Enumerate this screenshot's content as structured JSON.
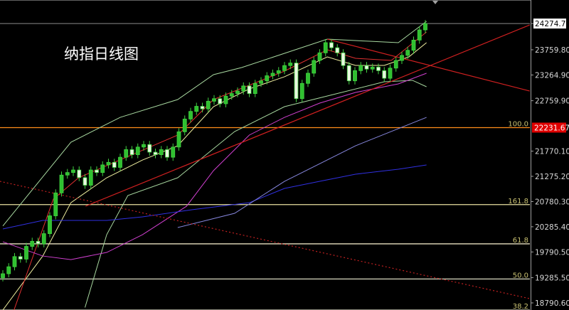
{
  "chart_data": {
    "type": "candlestick",
    "title": "纳指日线图",
    "ylim": [
      18651,
      24737
    ],
    "grid": false,
    "y_ticks": [
      "24274.73",
      "23759.80",
      "23264.90",
      "22759.90",
      "21770.10",
      "21275.20",
      "20780.30",
      "20285.40",
      "19790.50",
      "19285.50",
      "18790.60"
    ],
    "y_tick_values": [
      24274.73,
      23759.8,
      23264.9,
      22759.9,
      21770.1,
      21275.2,
      20780.3,
      20285.4,
      19790.5,
      19285.5,
      18790.6
    ],
    "current_price": {
      "label": "24274.73",
      "value": 24274.73
    },
    "marker_price": {
      "label": "22231.67",
      "value": 22231.67,
      "color": "#e00000"
    },
    "close": [
      19363,
      19500,
      19700,
      19650,
      19900,
      20000,
      19950,
      20150,
      20500,
      20950,
      21300,
      21350,
      21400,
      21250,
      21100,
      21400,
      21350,
      21500,
      21550,
      21450,
      21650,
      21800,
      21700,
      21850,
      21900,
      21750,
      21700,
      21800,
      21650,
      21850,
      22150,
      22400,
      22550,
      22650,
      22600,
      22750,
      22800,
      22700,
      22850,
      22900,
      22950,
      23050,
      22900,
      23100,
      23150,
      23250,
      23300,
      23350,
      23450,
      23500,
      22800,
      23100,
      23300,
      23550,
      23700,
      23900,
      23800,
      23700,
      23450,
      23150,
      23350,
      23450,
      23380,
      23420,
      23350,
      23200,
      23400,
      23550,
      23650,
      23750,
      23950,
      24150,
      24274
    ],
    "fib_levels": [
      {
        "label": "100.0",
        "value": 22231.67,
        "color": "#ff8c1a"
      },
      {
        "label": "161.8",
        "value": 20720,
        "color": "#e8e0a0"
      },
      {
        "label": "61.8",
        "value": 19950,
        "color": "#e8e0c0"
      },
      {
        "label": "50.0",
        "value": 19260,
        "color": "#d8d8c0"
      },
      {
        "label": "38.2",
        "value": 18650,
        "color": "#d8d8c0"
      }
    ],
    "lines": [
      {
        "color": "#a8d8a0",
        "points": [
          [
            0,
            20300
          ],
          [
            11.6,
            21945
          ],
          [
            20,
            22433
          ],
          [
            29.8,
            22783
          ],
          [
            35.9,
            23271
          ],
          [
            40.7,
            23411
          ],
          [
            48,
            23690
          ],
          [
            55.3,
            23969
          ],
          [
            62.5,
            23927
          ],
          [
            67.4,
            23900
          ],
          [
            72.2,
            24318
          ]
        ]
      },
      {
        "color": "#a8d8a0",
        "points": [
          [
            14,
            18700
          ],
          [
            17.7,
            20130
          ],
          [
            21.3,
            20898
          ],
          [
            29.8,
            21247
          ],
          [
            39.5,
            22154
          ],
          [
            48,
            22643
          ],
          [
            55.3,
            22852
          ],
          [
            65,
            23131
          ],
          [
            69.8,
            23160
          ],
          [
            72.2,
            23034
          ]
        ]
      },
      {
        "color": "#f0f0a0",
        "points": [
          [
            0,
            18651
          ],
          [
            6.8,
            19711
          ],
          [
            11.6,
            20758
          ],
          [
            17.7,
            21247
          ],
          [
            23.8,
            21596
          ],
          [
            29.8,
            21875
          ],
          [
            35.9,
            22643
          ],
          [
            42,
            22992
          ],
          [
            48,
            23230
          ],
          [
            55.3,
            23620
          ],
          [
            60.1,
            23453
          ],
          [
            65,
            23453
          ],
          [
            69.2,
            23620
          ],
          [
            72.2,
            23900
          ]
        ]
      },
      {
        "color": "#e03030",
        "points": [
          [
            1.9,
            18651
          ],
          [
            8.6,
            20828
          ],
          [
            12.9,
            21247
          ],
          [
            29.8,
            22085
          ],
          [
            35.9,
            22783
          ],
          [
            48,
            23341
          ],
          [
            55.3,
            23760
          ],
          [
            60.1,
            23592
          ],
          [
            66.2,
            23550
          ],
          [
            72.2,
            24109
          ]
        ]
      },
      {
        "color": "#d040d0",
        "points": [
          [
            0,
            19990
          ],
          [
            6.8,
            19711
          ],
          [
            11.6,
            19641
          ],
          [
            17.7,
            19781
          ],
          [
            23.8,
            20130
          ],
          [
            31.3,
            20688
          ],
          [
            35.9,
            21387
          ],
          [
            42,
            22085
          ],
          [
            48,
            22433
          ],
          [
            54,
            22713
          ],
          [
            60.1,
            22922
          ],
          [
            67.4,
            23090
          ],
          [
            72.2,
            23299
          ]
        ]
      },
      {
        "color": "#3030e0",
        "points": [
          [
            0,
            20242
          ],
          [
            6.8,
            20409
          ],
          [
            17.7,
            20409
          ],
          [
            23.8,
            20479
          ],
          [
            32.2,
            20619
          ],
          [
            42,
            20758
          ],
          [
            48,
            21038
          ],
          [
            54,
            21177
          ],
          [
            60.1,
            21317
          ],
          [
            67.4,
            21415
          ],
          [
            72.2,
            21498
          ]
        ]
      },
      {
        "color": "#8888e0",
        "points": [
          [
            29.8,
            20270
          ],
          [
            39.5,
            20549
          ],
          [
            48,
            21177
          ],
          [
            60.1,
            21875
          ],
          [
            72.2,
            22433
          ]
        ]
      }
    ],
    "trendlines": [
      {
        "color": "#d02020",
        "style": "solid",
        "points": [
          [
            14.1,
            20689
          ],
          [
            89.8,
            24248
          ]
        ]
      },
      {
        "color": "#d02020",
        "style": "solid",
        "points": [
          [
            55.3,
            23969
          ],
          [
            89.8,
            22950
          ]
        ]
      },
      {
        "color": "#c02020",
        "style": "dotted",
        "points": [
          [
            -0.5,
            21177
          ],
          [
            89.8,
            18874
          ]
        ]
      }
    ]
  }
}
